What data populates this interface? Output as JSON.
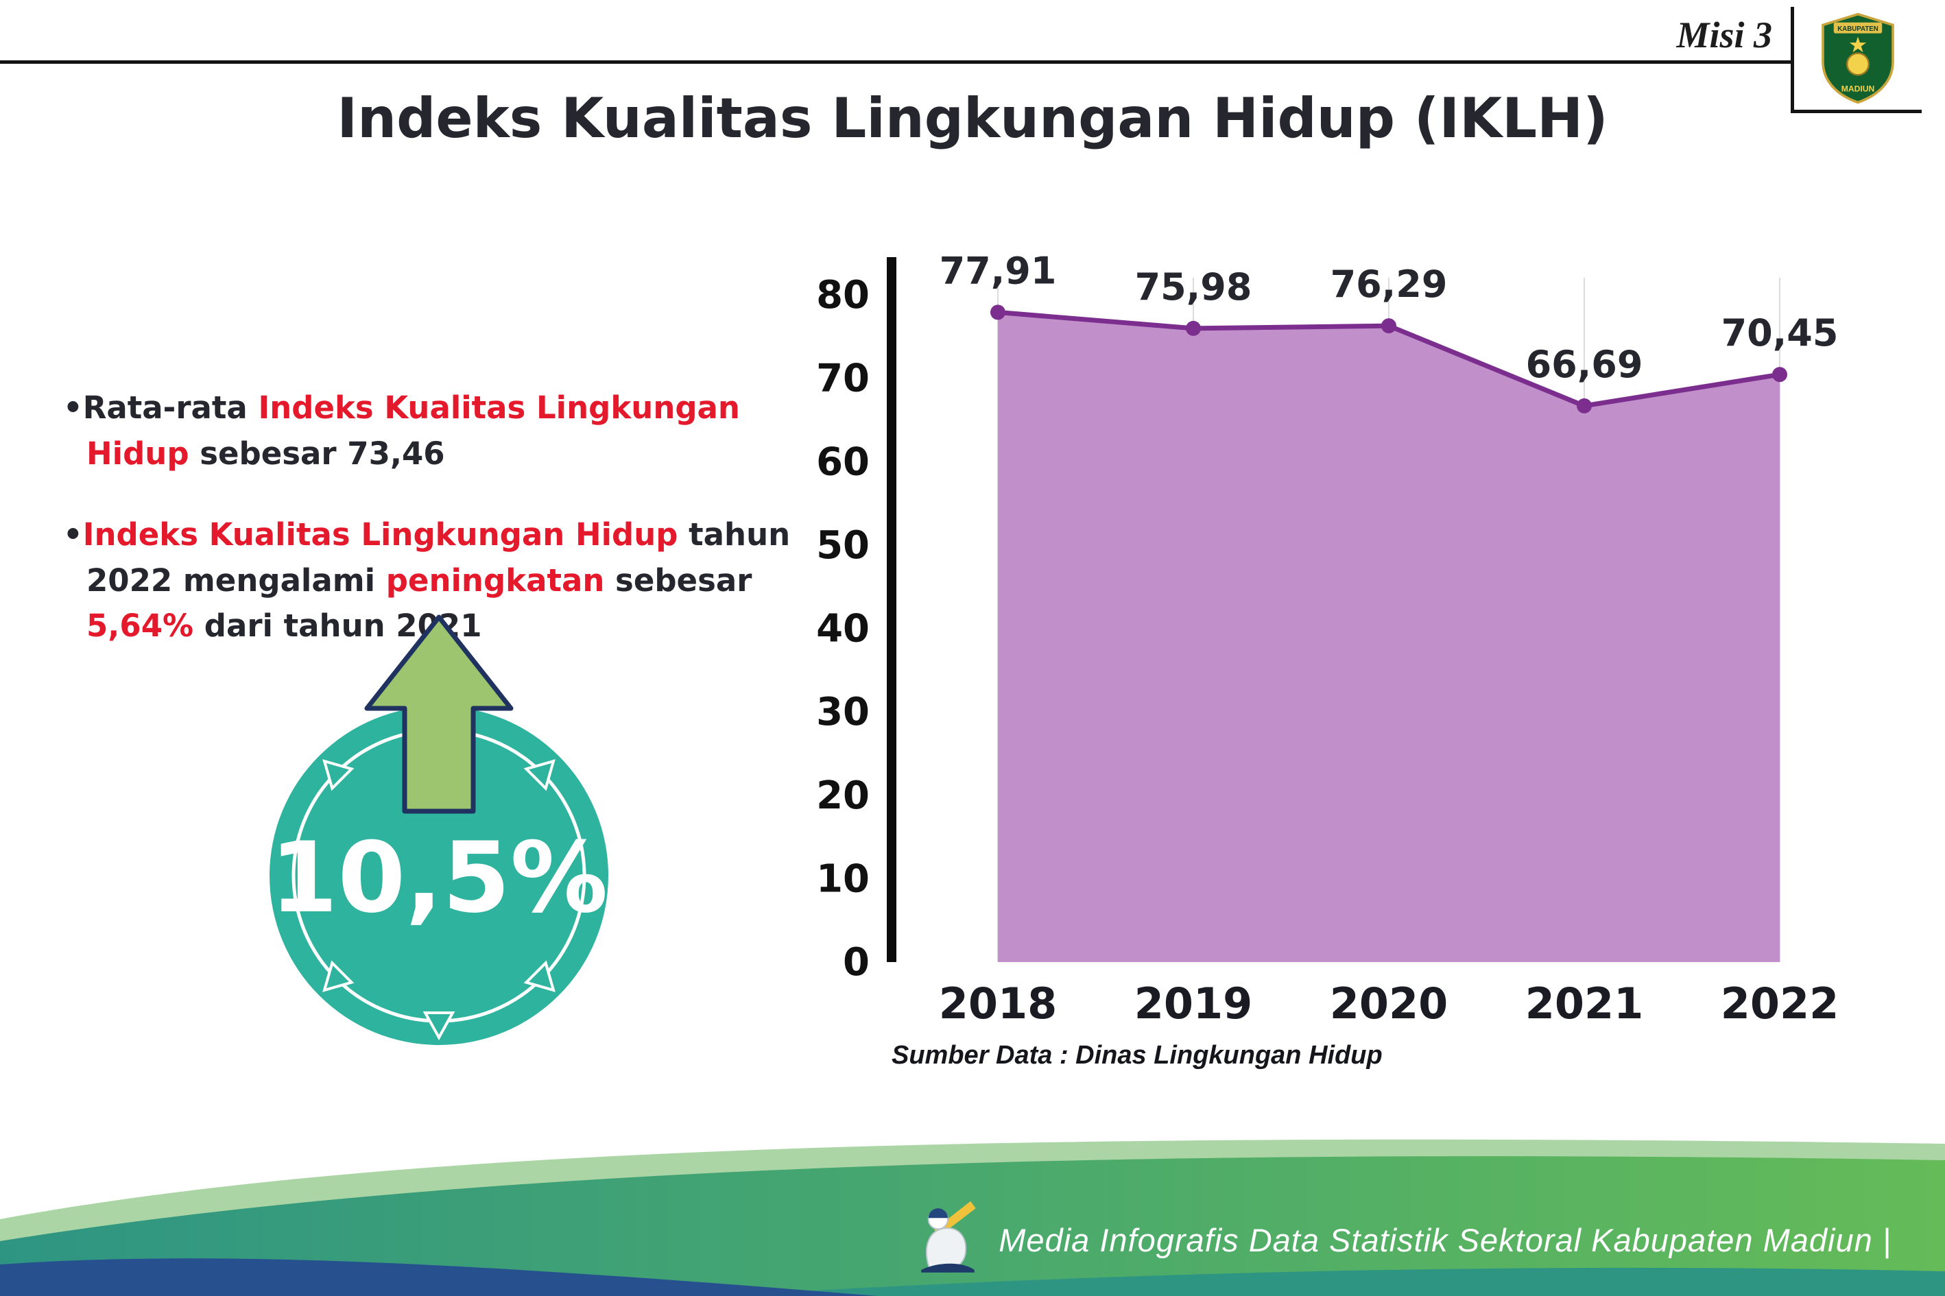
{
  "header": {
    "misi_label": "Misi 3",
    "title": "Indeks Kualitas Lingkungan Hidup (IKLH)",
    "logo": {
      "name": "Lambang Kabupaten Madiun",
      "top_text": "KABUPATEN",
      "bottom_text": "MADIUN"
    }
  },
  "bullets": {
    "marker": "•",
    "item1": {
      "pre": "Rata-rata ",
      "red": "Indeks Kualitas Lingkungan Hidup",
      "post": " sebesar 73,46"
    },
    "item2": {
      "red1": "Indeks Kualitas Lingkungan Hidup",
      "mid1": " tahun 2022 mengalami ",
      "red2": "peningkatan",
      "mid2": " sebesar ",
      "red3": "5,64%",
      "post": " dari tahun 2021"
    }
  },
  "badge": {
    "value": "10,5%"
  },
  "chart_data": {
    "type": "area",
    "title": "",
    "xlabel": "",
    "ylabel": "",
    "categories": [
      "2018",
      "2019",
      "2020",
      "2021",
      "2022"
    ],
    "values": [
      77.91,
      75.98,
      76.29,
      66.69,
      70.45
    ],
    "point_labels": [
      "77,91",
      "75,98",
      "76,29",
      "66,69",
      "70,45"
    ],
    "ylim": [
      0,
      80
    ],
    "yticks": [
      0,
      10,
      20,
      30,
      40,
      50,
      60,
      70,
      80
    ],
    "grid": "vertical",
    "grid_color": "#dcdcdc",
    "fill_color": "#c18fc9",
    "line_color": "#7b2e8e",
    "legend": "none",
    "source_note": "Sumber Data : Dinas Lingkungan Hidup"
  },
  "footer": {
    "credit": "Media Infografis Data Statistik Sektoral Kabupaten Madiun |"
  },
  "colors": {
    "accent_red": "#e4192b",
    "ink": "#26262e",
    "teal_badge": "#2db39e",
    "arrow_green": "#9dc46e",
    "arrow_outline": "#20325f",
    "footer_teal": "#2e9583",
    "footer_green": "#64bb58",
    "footer_navy": "#27508f",
    "footer_light": "#abd5a5"
  }
}
